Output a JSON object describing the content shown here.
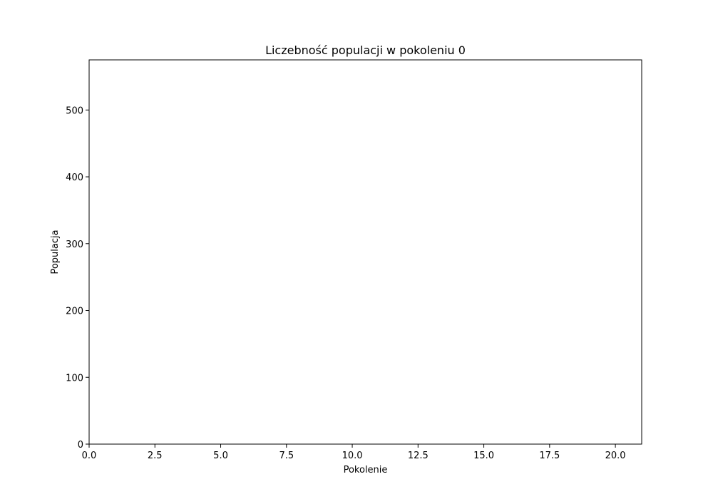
{
  "chart_data": {
    "type": "line",
    "title": "Liczebność populacji w pokoleniu 0",
    "xlabel": "Pokolenie",
    "ylabel": "Populacja",
    "xlim": [
      0,
      21
    ],
    "ylim": [
      0,
      575
    ],
    "xticks": [
      0,
      2.5,
      5,
      7.5,
      10,
      12.5,
      15,
      17.5,
      20
    ],
    "xtick_labels": [
      "0.0",
      "2.5",
      "5.0",
      "7.5",
      "10.0",
      "12.5",
      "15.0",
      "17.5",
      "20.0"
    ],
    "yticks": [
      0,
      100,
      200,
      300,
      400,
      500
    ],
    "ytick_labels": [
      "0",
      "100",
      "200",
      "300",
      "400",
      "500"
    ],
    "grid": false,
    "series": []
  }
}
